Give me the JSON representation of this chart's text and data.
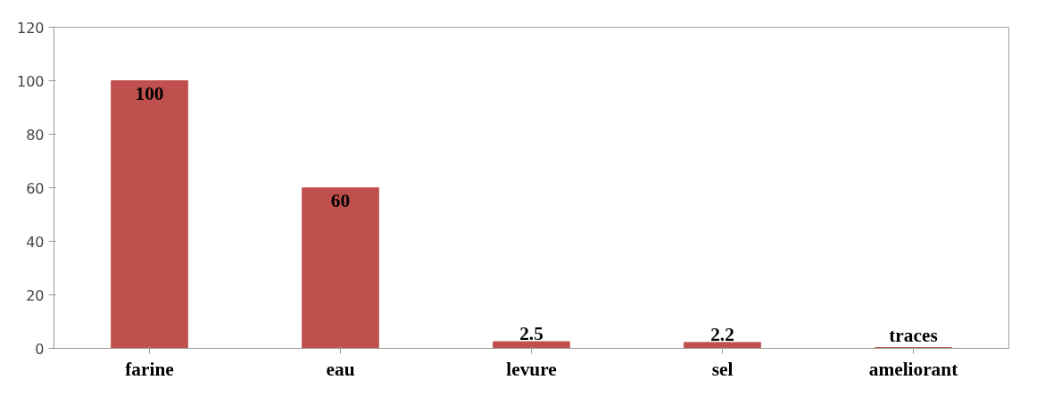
{
  "chart_data": {
    "type": "bar",
    "categories": [
      "farine",
      "eau",
      "levure",
      "sel",
      "ameliorant"
    ],
    "values": [
      100,
      60,
      2.5,
      2.2,
      0.3
    ],
    "value_labels": [
      "100",
      "60",
      "2.5",
      "2.2",
      "traces"
    ],
    "color": "#c0504d",
    "ylim": [
      0,
      120
    ],
    "yticks": [
      0,
      20,
      40,
      60,
      80,
      100,
      120
    ],
    "grid": false
  }
}
